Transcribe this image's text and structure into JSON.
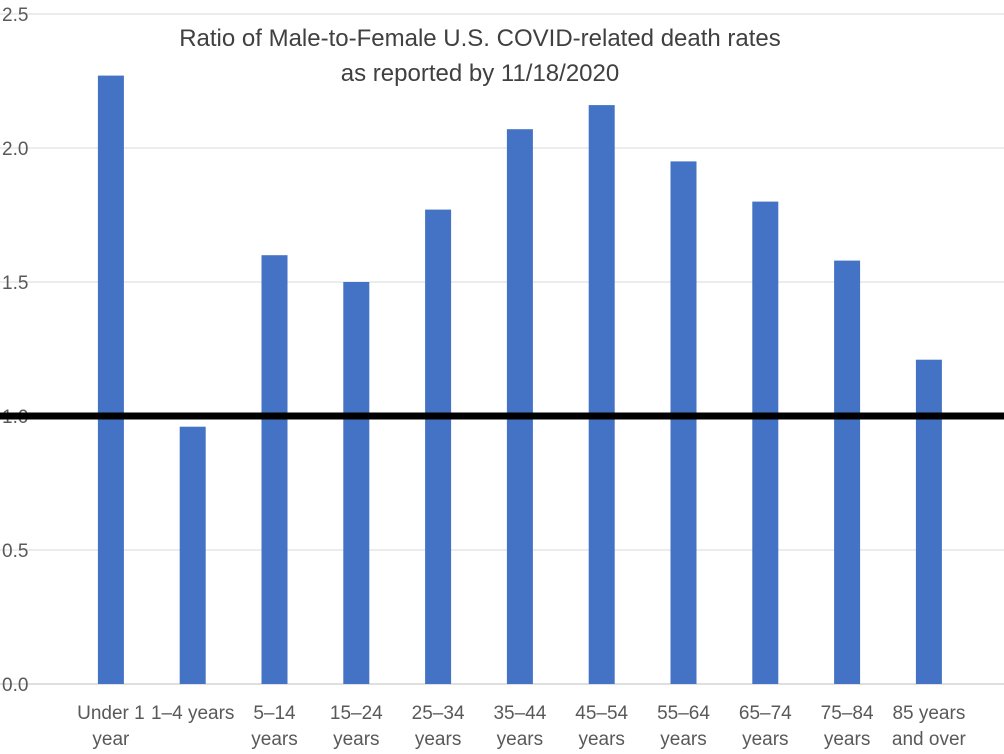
{
  "chart_data": {
    "type": "bar",
    "title": "Ratio of Male-to-Female U.S. COVID-related death rates",
    "subtitle": "as reported by 11/18/2020",
    "categories": [
      [
        "Under 1",
        "year"
      ],
      [
        "1–4 years"
      ],
      [
        "5–14",
        "years"
      ],
      [
        "15–24",
        "years"
      ],
      [
        "25–34",
        "years"
      ],
      [
        "35–44",
        "years"
      ],
      [
        "45–54",
        "years"
      ],
      [
        "55–64",
        "years"
      ],
      [
        "65–74",
        "years"
      ],
      [
        "75–84",
        "years"
      ],
      [
        "85 years",
        "and over"
      ]
    ],
    "values": [
      2.27,
      0.96,
      1.6,
      1.5,
      1.77,
      2.07,
      2.16,
      1.95,
      1.8,
      1.58,
      1.21
    ],
    "yticks": [
      "0.0",
      "0.5",
      "1.0",
      "1.5",
      "2.0",
      "2.5"
    ],
    "ylim": [
      0,
      2.5
    ],
    "grid": true,
    "reference_line": 1.0,
    "colors": {
      "bar": "#4472C4",
      "reference": "#000000",
      "grid": "#D9D9D9",
      "axis": "#BFBFBF"
    }
  }
}
